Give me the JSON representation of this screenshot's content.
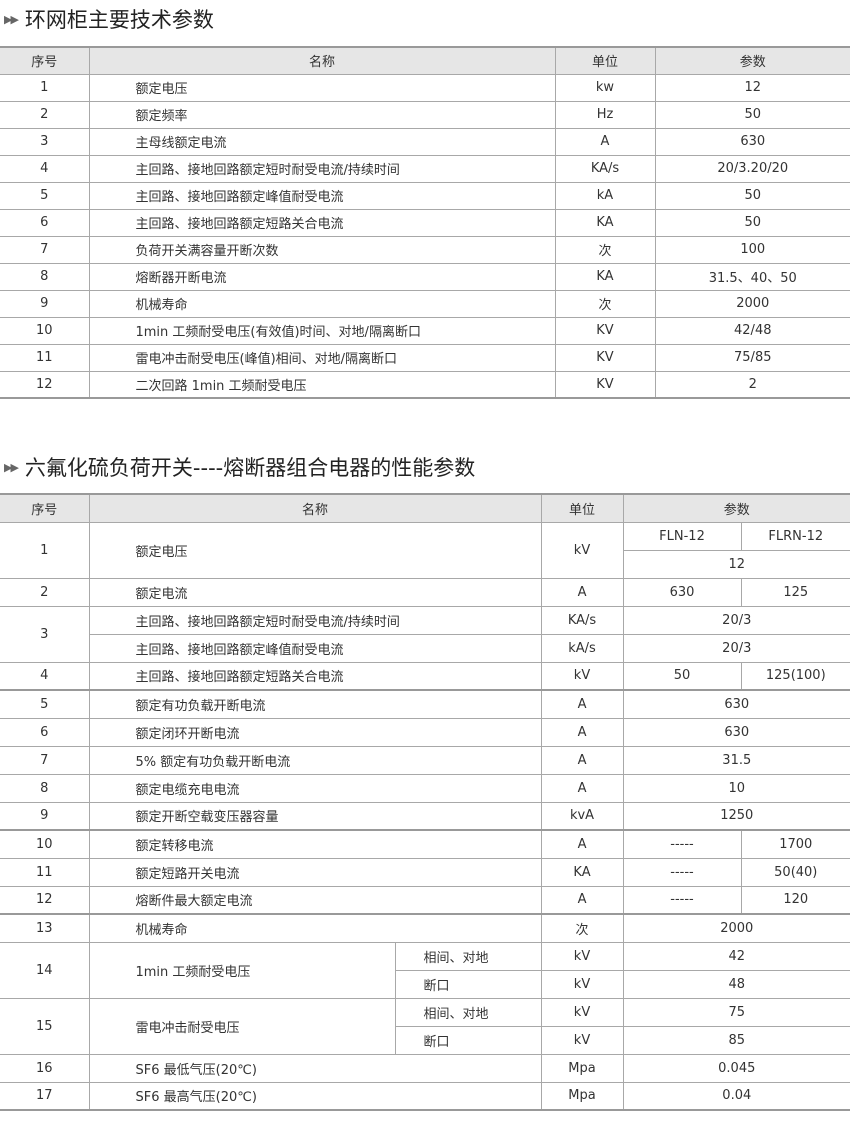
{
  "t1": {
    "title": "环网柜主要技术参数",
    "headers": [
      "序号",
      "名称",
      "单位",
      "参数"
    ],
    "rows": [
      [
        "1",
        "额定电压",
        "kw",
        "12"
      ],
      [
        "2",
        "额定频率",
        "Hz",
        "50"
      ],
      [
        "3",
        "主母线额定电流",
        "A",
        "630"
      ],
      [
        "4",
        "主回路、接地回路额定短时耐受电流/持续时间",
        "KA/s",
        "20/3.20/20"
      ],
      [
        "5",
        "主回路、接地回路额定峰值耐受电流",
        "kA",
        "50"
      ],
      [
        "6",
        "主回路、接地回路额定短路关合电流",
        "KA",
        "50"
      ],
      [
        "7",
        "负荷开关满容量开断次数",
        "次",
        "100"
      ],
      [
        "8",
        "熔断器开断电流",
        "KA",
        "31.5、40、50"
      ],
      [
        "9",
        "机械寿命",
        "次",
        "2000"
      ],
      [
        "10",
        "1min 工频耐受电压(有效值)时间、对地/隔离断口",
        "KV",
        "42/48"
      ],
      [
        "11",
        "雷电冲击耐受电压(峰值)相间、对地/隔离断口",
        "KV",
        "75/85"
      ],
      [
        "12",
        "二次回路 1min 工频耐受电压",
        "KV",
        "2"
      ]
    ]
  },
  "t2": {
    "title": "六氟化硫负荷开关----熔断器组合电器的性能参数",
    "headers": [
      "序号",
      "名称",
      "单位",
      "参数"
    ],
    "models": [
      "FLN-12",
      "FLRN-12"
    ],
    "r1": {
      "no": "1",
      "name": "额定电压",
      "unit": "kV",
      "val": "12"
    },
    "r2": {
      "no": "2",
      "name": "额定电流",
      "unit": "A",
      "p1": "630",
      "p2": "125"
    },
    "r3": {
      "no": "3",
      "name_a": "主回路、接地回路额定短时耐受电流/持续时间",
      "unit_a": "KA/s",
      "val_a": "20/3",
      "name_b": "主回路、接地回路额定峰值耐受电流",
      "unit_b": "kA/s",
      "val_b": "20/3"
    },
    "r4": {
      "no": "4",
      "name": "主回路、接地回路额定短路关合电流",
      "unit": "kV",
      "p1": "50",
      "p2": "125(100)"
    },
    "simple": [
      {
        "no": "5",
        "name": "额定有功负载开断电流",
        "unit": "A",
        "val": "630"
      },
      {
        "no": "6",
        "name": "额定闭环开断电流",
        "unit": "A",
        "val": "630"
      },
      {
        "no": "7",
        "name": "5% 额定有功负载开断电流",
        "unit": "A",
        "val": "31.5"
      },
      {
        "no": "8",
        "name": "额定电缆充电电流",
        "unit": "A",
        "val": "10"
      },
      {
        "no": "9",
        "name": "额定开断空载变压器容量",
        "unit": "kvA",
        "val": "1250"
      }
    ],
    "split": [
      {
        "no": "10",
        "name": "额定转移电流",
        "unit": "A",
        "p1": "-----",
        "p2": "1700"
      },
      {
        "no": "11",
        "name": "额定短路开关电流",
        "unit": "KA",
        "p1": "-----",
        "p2": "50(40)"
      },
      {
        "no": "12",
        "name": "熔断件最大额定电流",
        "unit": "A",
        "p1": "-----",
        "p2": "120"
      }
    ],
    "r13": {
      "no": "13",
      "name": "机械寿命",
      "unit": "次",
      "val": "2000"
    },
    "r14": {
      "no": "14",
      "name": "1min 工频耐受电压",
      "sub_a": "相间、对地",
      "unit_a": "kV",
      "val_a": "42",
      "sub_b": "断口",
      "unit_b": "kV",
      "val_b": "48"
    },
    "r15": {
      "no": "15",
      "name": "雷电冲击耐受电压",
      "sub_a": "相间、对地",
      "unit_a": "kV",
      "val_a": "75",
      "sub_b": "断口",
      "unit_b": "kV",
      "val_b": "85"
    },
    "r16": {
      "no": "16",
      "name": "SF6 最低气压(20℃)",
      "unit": "Mpa",
      "val": "0.045"
    },
    "r17": {
      "no": "17",
      "name": "SF6 最高气压(20℃)",
      "unit": "Mpa",
      "val": "0.04"
    }
  }
}
